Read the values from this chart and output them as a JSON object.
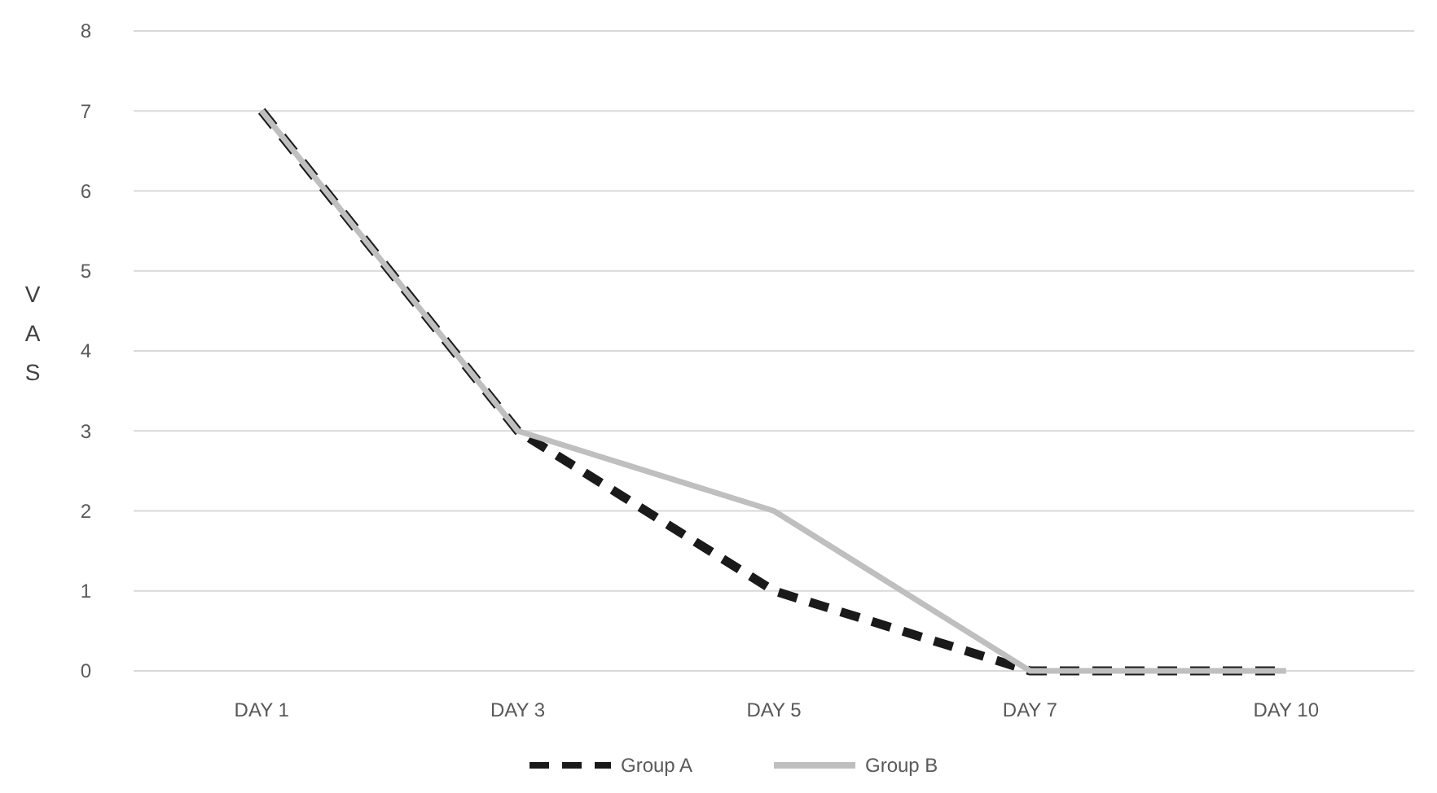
{
  "chart_data": {
    "type": "line",
    "ylabel": "VAS",
    "categories": [
      "DAY 1",
      "DAY 3",
      "DAY 5",
      "DAY 7",
      "DAY 10"
    ],
    "series": [
      {
        "name": "Group A",
        "color": "#1a1a1a",
        "values": [
          7,
          3,
          1,
          0,
          0
        ],
        "line_style": "dashed"
      },
      {
        "name": "Group B",
        "color": "#bfbfbf",
        "values": [
          7,
          3,
          2,
          0,
          0
        ],
        "line_style": "solid"
      }
    ],
    "ylim": [
      0,
      8
    ],
    "yticks": [
      0,
      1,
      2,
      3,
      4,
      5,
      6,
      7,
      8
    ],
    "grid": "y",
    "legend": "bottom",
    "marker": "none"
  }
}
